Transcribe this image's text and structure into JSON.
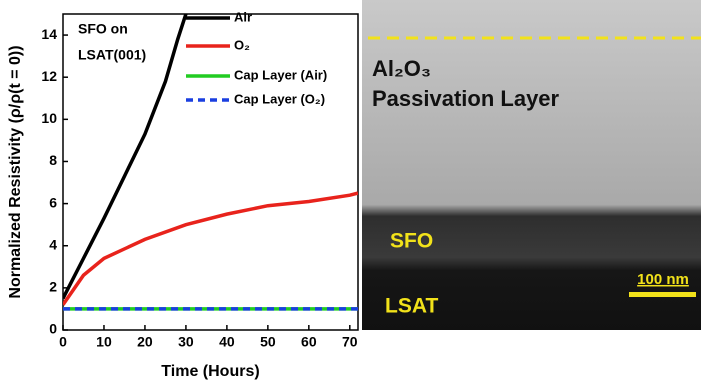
{
  "chart_data": {
    "type": "line",
    "xlabel": "Time (Hours)",
    "ylabel": "Normalized Resistivity (ρ/ρ(t = 0))",
    "annotations": [
      "SFO on",
      "LSAT(001)"
    ],
    "xlim": [
      0,
      72
    ],
    "ylim": [
      0,
      15
    ],
    "xticks": [
      0,
      10,
      20,
      30,
      40,
      50,
      60,
      70
    ],
    "yticks": [
      0,
      2,
      4,
      6,
      8,
      10,
      12,
      14
    ],
    "legend": "upper right",
    "series": [
      {
        "name": "Air",
        "color": "#000000",
        "dash": false,
        "x": [
          0,
          5,
          10,
          15,
          20,
          25,
          28,
          30
        ],
        "values": [
          1.5,
          3.4,
          5.3,
          7.3,
          9.3,
          11.8,
          13.8,
          15
        ]
      },
      {
        "name": "O₂",
        "color": "#e8231c",
        "dash": false,
        "x": [
          0,
          5,
          10,
          20,
          30,
          40,
          50,
          60,
          70,
          72
        ],
        "values": [
          1.2,
          2.6,
          3.4,
          4.3,
          5.0,
          5.5,
          5.9,
          6.1,
          6.4,
          6.5
        ]
      },
      {
        "name": "Cap Layer (Air)",
        "color": "#22cc22",
        "dash": false,
        "x": [
          0,
          72
        ],
        "values": [
          1.0,
          1.0
        ]
      },
      {
        "name": "Cap Layer (O₂)",
        "color": "#1a3fe0",
        "dash": true,
        "x": [
          0,
          72
        ],
        "values": [
          1.0,
          1.0
        ]
      }
    ]
  },
  "image_panel": {
    "layer_label": [
      "Al₂O₃",
      "Passivation Layer"
    ],
    "film_label": "SFO",
    "substrate_label": "LSAT",
    "scale_bar": "100 nm"
  }
}
